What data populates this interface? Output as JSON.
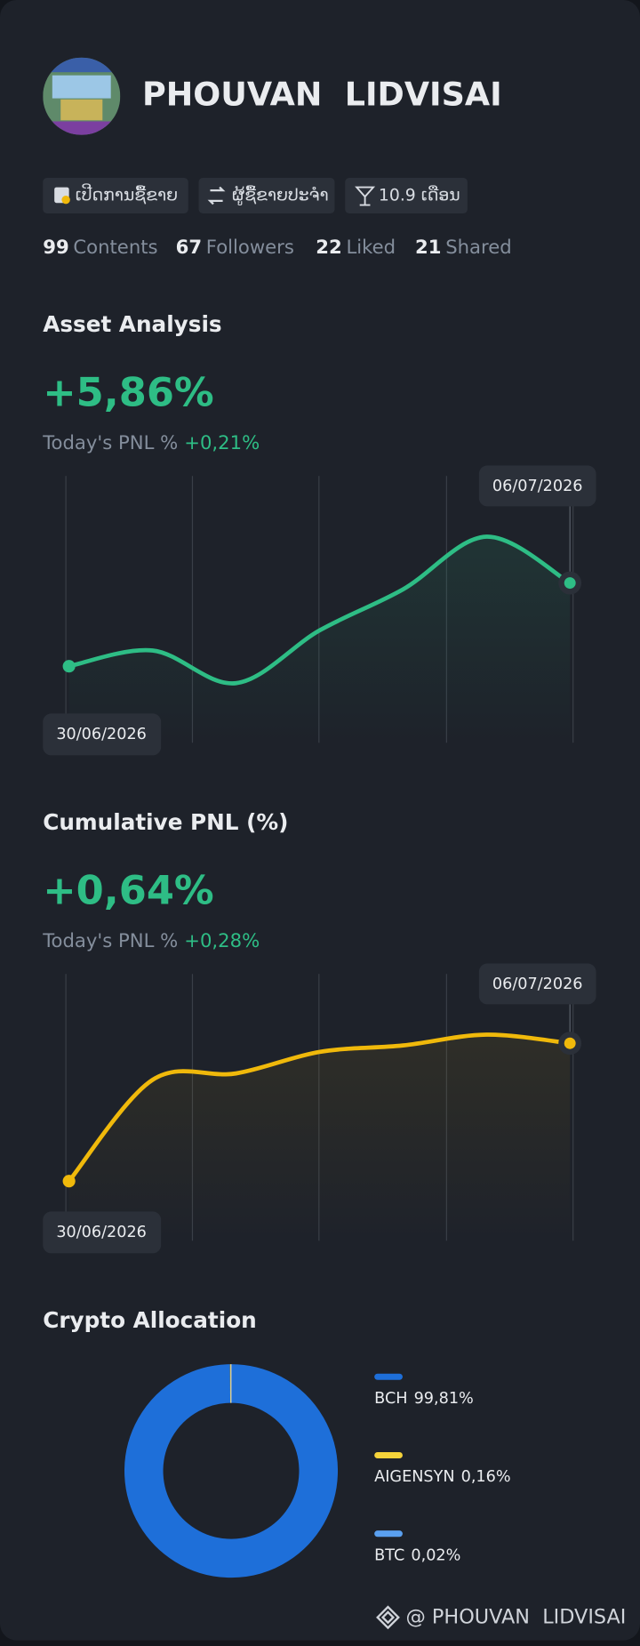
{
  "profile": {
    "name": "PHOUVAN  LIDVISAI",
    "tags": [
      "ເປີດການຊື້ຂາຍ",
      "ຜູ້ຊື້ຂາຍປະຈຳ",
      "10.9 ເດືອນ"
    ],
    "stats": [
      {
        "value": 99,
        "label": "Contents"
      },
      {
        "value": 67,
        "label": "Followers"
      },
      {
        "value": 22,
        "label": "Liked"
      },
      {
        "value": 21,
        "label": "Shared"
      }
    ]
  },
  "chart_data": [
    {
      "type": "line",
      "title": "Asset Analysis",
      "headline": "+5,86%",
      "subtitle": "Today's PNL %",
      "today": "+0,21%",
      "categories": [
        "30/06/2026",
        null,
        null,
        null,
        null,
        null,
        "06/07/2026"
      ],
      "series": [
        {
          "color": "#2ebd85",
          "values": [
            0,
            1.11,
            -1.19,
            2.52,
            5.41,
            9.12,
            5.86
          ]
        }
      ]
    },
    {
      "type": "line",
      "title": "Cumulative PNL (%)",
      "headline": "+0,64%",
      "subtitle": "Today's PNL %",
      "today": "+0,28%",
      "categories": [
        "30/06/2026",
        null,
        null,
        null,
        null,
        null,
        "06/07/2026"
      ],
      "series": [
        {
          "color": "#f0b90b",
          "values": [
            0,
            0.47,
            0.5,
            0.6,
            0.63,
            0.68,
            0.64
          ]
        }
      ]
    },
    {
      "type": "pie",
      "title": "Crypto Allocation",
      "categories": [
        "BCH",
        "AIGENSYN",
        "BTC"
      ],
      "values": [
        99.81,
        0.16,
        0.02
      ],
      "value_labels": [
        "99,81%",
        "0,16%",
        "0,02%"
      ],
      "colors": [
        "#1e6fd9",
        "#f5d33a",
        "#5aa0f0"
      ]
    }
  ],
  "footer": "@ PHOUVAN  LIDVISAI"
}
